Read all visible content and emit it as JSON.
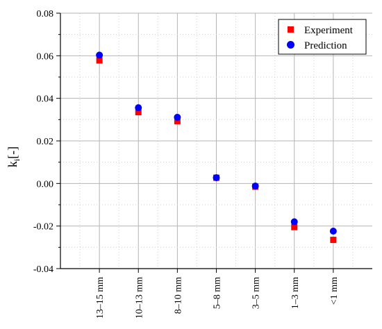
{
  "chart_data": {
    "type": "scatter",
    "title": "",
    "xlabel": "",
    "ylabel": "k",
    "ylabel_subscript": "i",
    "ylabel_suffix": "[-]",
    "categories": [
      "13–15 mm",
      "10–13 mm",
      "8–10 mm",
      "5–8 mm",
      "3–5 mm",
      "1–3 mm",
      "<1 mm"
    ],
    "series": [
      {
        "name": "Experiment",
        "marker": "square",
        "color": "#ff0000",
        "values": [
          0.0578,
          0.0335,
          0.0293,
          0.0027,
          -0.0015,
          -0.0205,
          -0.0265
        ]
      },
      {
        "name": "Prediction",
        "marker": "circle",
        "color": "#0000ff",
        "values": [
          0.0603,
          0.0356,
          0.0311,
          0.0027,
          -0.0012,
          -0.018,
          -0.0224
        ]
      }
    ],
    "ylim": [
      -0.04,
      0.08
    ],
    "yticks": [
      "0.08",
      "0.06",
      "0.04",
      "0.02",
      "0.00",
      "-0.02",
      "-0.04"
    ],
    "ytick_values": [
      0.08,
      0.06,
      0.04,
      0.02,
      0.0,
      -0.02,
      -0.04
    ],
    "grid": true,
    "legend_position": "top-right"
  }
}
